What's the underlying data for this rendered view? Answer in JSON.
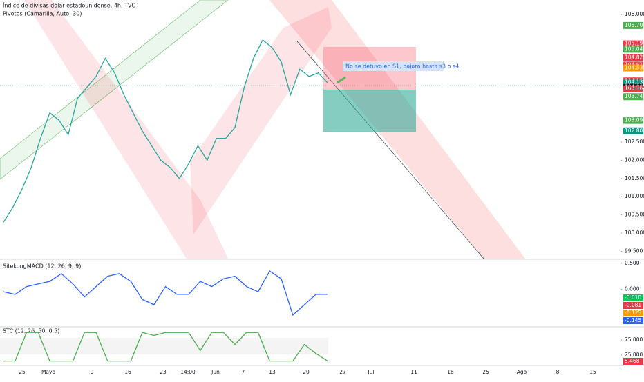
{
  "header": {
    "title": "Índice de divisas dólar estadounidense, 4h, TVC",
    "indicator": "Pivotes (Camarilla, Auto, 30)"
  },
  "annotation": "No se detuvo en S1, bajara hasta s3 o s4.",
  "countdown": "02:49:20",
  "price_panel": {
    "ylim": [
      99.3,
      106.4
    ],
    "yticks": [
      {
        "value": 106,
        "label": "106.000"
      },
      {
        "value": 102.5,
        "label": "102.500"
      },
      {
        "value": 102,
        "label": "102.000"
      },
      {
        "value": 101.5,
        "label": "101.500"
      },
      {
        "value": 101,
        "label": "101.000"
      },
      {
        "value": 100.5,
        "label": "100.500"
      },
      {
        "value": 100,
        "label": "100.000"
      },
      {
        "value": 99.5,
        "label": "99.500"
      }
    ],
    "badges": [
      {
        "value": 105.701,
        "label": "105.701",
        "color": "#4caf50"
      },
      {
        "value": 105.195,
        "label": "105.195",
        "color": "#f23645"
      },
      {
        "value": 105.049,
        "label": "105.049",
        "color": "#4caf50"
      },
      {
        "value": 104.822,
        "label": "104.822",
        "color": "#f23645"
      },
      {
        "value": 104.614,
        "label": "104.614",
        "color": "#f23645"
      },
      {
        "value": 104.534,
        "label": "104.534",
        "color": "#ff9800"
      },
      {
        "value": 104.18,
        "label": "104.180",
        "color": "#f23645"
      },
      {
        "value": 104.133,
        "label": "104.133",
        "color": "#089981"
      },
      {
        "value": 104.001,
        "label": "104.001",
        "color": "#131722"
      },
      {
        "value": 103.963,
        "label": "103.963",
        "color": "#f23645"
      },
      {
        "value": 103.745,
        "label": "103.745",
        "color": "#4caf50"
      },
      {
        "value": 103.094,
        "label": "103.094",
        "color": "#4caf50"
      },
      {
        "value": 102.807,
        "label": "102.807",
        "color": "#089981"
      }
    ],
    "series": {
      "name": "Precio",
      "color": "#26a69a",
      "values": [
        100.3,
        100.7,
        101.2,
        101.8,
        102.6,
        103.3,
        103.1,
        102.7,
        103.7,
        104.0,
        104.3,
        104.8,
        104.4,
        103.8,
        103.3,
        102.8,
        102.4,
        102.0,
        101.8,
        101.5,
        101.9,
        102.4,
        102.0,
        102.6,
        102.6,
        102.9,
        104.0,
        104.8,
        105.3,
        105.1,
        104.7,
        103.8,
        104.5,
        104.3,
        104.4,
        104.13
      ]
    }
  },
  "macd_panel": {
    "title": "SitekongMACD (12, 26, 9, 9)",
    "ylim": [
      -0.7,
      0.55
    ],
    "yticks": [
      {
        "value": 0.5,
        "label": "0.500"
      },
      {
        "value": 0,
        "label": "0.000"
      }
    ],
    "badges": [
      {
        "value": -0.01,
        "label": "-0.010",
        "color": "#00c853"
      },
      {
        "value": -0.081,
        "label": "-0.081",
        "color": "#f23645"
      },
      {
        "value": -0.125,
        "label": "-0.125",
        "color": "#ff9800"
      },
      {
        "value": -0.145,
        "label": "-0.145",
        "color": "#2962ff"
      }
    ],
    "series": {
      "name": "MACD",
      "color": "#2962ff",
      "values": [
        -0.05,
        -0.1,
        0.05,
        0.1,
        0.15,
        0.3,
        0.1,
        -0.15,
        0.05,
        0.25,
        0.3,
        0.15,
        -0.2,
        -0.3,
        0.05,
        -0.1,
        -0.1,
        0.15,
        0.05,
        0.2,
        0.25,
        0.05,
        -0.05,
        0.35,
        0.2,
        -0.5,
        -0.3,
        -0.1,
        -0.1
      ]
    }
  },
  "stc_panel": {
    "title": "STC (12, 26, 50, 0.5)",
    "ylim": [
      -5,
      105
    ],
    "yticks": [
      {
        "value": 75,
        "label": "75.000"
      },
      {
        "value": 25,
        "label": "25.000"
      }
    ],
    "badge": {
      "value": 5.468,
      "label": "5.468",
      "color": "#f23645"
    },
    "series": {
      "name": "STC",
      "color": "#4caf50",
      "values": [
        5,
        5,
        100,
        100,
        5,
        5,
        5,
        100,
        100,
        5,
        5,
        5,
        100,
        90,
        100,
        100,
        100,
        40,
        100,
        100,
        60,
        100,
        100,
        5,
        5,
        5,
        60,
        30,
        5
      ]
    }
  },
  "x_labels": [
    "25",
    "Mayo",
    "9",
    "16",
    "23",
    "14:00",
    "Jun",
    "7",
    "13",
    "20",
    "27",
    "Jul",
    "11",
    "18",
    "25",
    "Ago",
    "8",
    "15"
  ]
}
